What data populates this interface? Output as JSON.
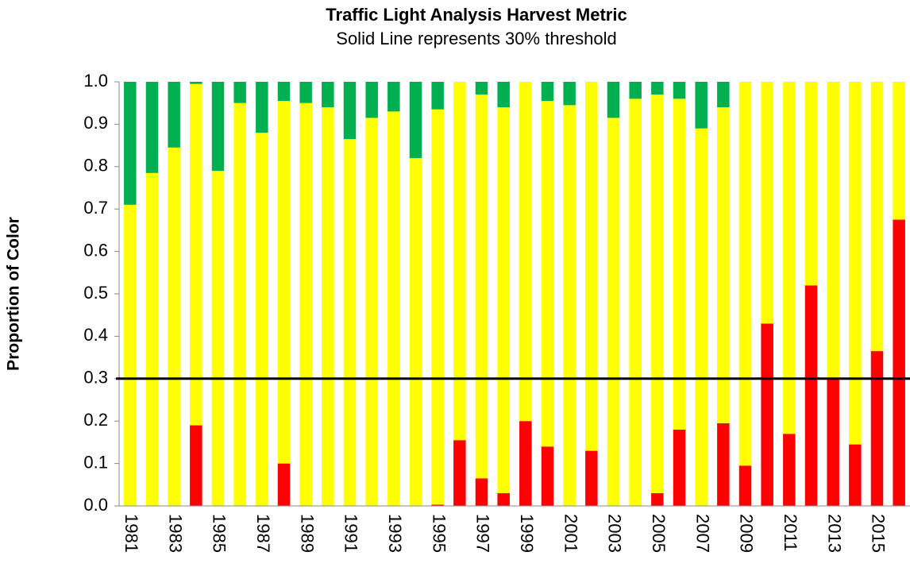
{
  "chart_data": {
    "type": "stacked_bar",
    "title": "Traffic Light Analysis Harvest Metric",
    "subtitle": "Solid Line represents 30% threshold",
    "y_label": "Proportion of Color",
    "categories": [
      "1981",
      null,
      "1983",
      null,
      "1985",
      null,
      "1987",
      null,
      "1989",
      null,
      "1991",
      null,
      "1993",
      null,
      "1995",
      null,
      "1997",
      null,
      "1999",
      null,
      "2001",
      null,
      "2003",
      null,
      "2005",
      null,
      "2007",
      null,
      "2009",
      null,
      "2011",
      null,
      "2013",
      null,
      "2015",
      null
    ],
    "series": [
      {
        "color": "#ff0000",
        "values": [
          0,
          0,
          0,
          0.19,
          0,
          0,
          0,
          0.1,
          0,
          0,
          0,
          0,
          0,
          0,
          0.003,
          0.155,
          0.065,
          0.03,
          0.2,
          0.14,
          0,
          0.13,
          0,
          0,
          0.03,
          0.18,
          0,
          0.195,
          0.095,
          0.43,
          0.17,
          0.52,
          0.3,
          0.145,
          0.365,
          0.675
        ]
      },
      {
        "color": "#ffff00",
        "values": [
          0.71,
          0.785,
          0.845,
          0.805,
          0.79,
          0.95,
          0.88,
          0.855,
          0.95,
          0.94,
          0.865,
          0.915,
          0.93,
          0.82,
          0.932,
          0.845,
          0.905,
          0.91,
          0.8,
          0.815,
          0.945,
          0.87,
          0.915,
          0.96,
          0.94,
          0.78,
          0.89,
          0.745,
          0.905,
          0.57,
          0.83,
          0.48,
          0.7,
          0.855,
          0.635,
          0.325
        ]
      },
      {
        "color": "#00b050",
        "values": [
          0.29,
          0.215,
          0.155,
          0.005,
          0.21,
          0.05,
          0.12,
          0.045,
          0.05,
          0.06,
          0.135,
          0.085,
          0.07,
          0.18,
          0.065,
          0,
          0.03,
          0.06,
          0,
          0.045,
          0.055,
          0,
          0.085,
          0.04,
          0.03,
          0.04,
          0.11,
          0.06,
          0,
          0,
          0,
          0,
          0,
          0,
          0,
          0
        ]
      }
    ],
    "threshold": 0.3,
    "ylim": [
      0,
      1
    ],
    "yticks": [
      {
        "value": 0,
        "label": "0.0"
      },
      0.1,
      0.2,
      0.3,
      0.4,
      0.5,
      0.6,
      0.7,
      0.8,
      0.9,
      {
        "value": 1,
        "label": "1.0"
      }
    ]
  }
}
